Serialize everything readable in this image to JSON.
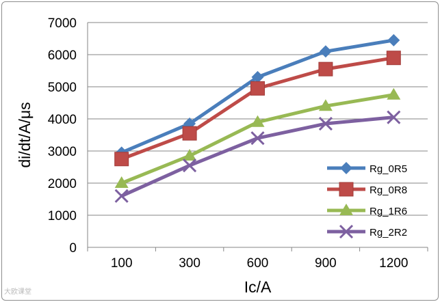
{
  "chart_data": {
    "type": "line",
    "title": "",
    "xlabel": "Ic/A",
    "ylabel": "di/dt/A/μs",
    "categories": [
      "100",
      "300",
      "600",
      "900",
      "1200"
    ],
    "ylim": [
      0,
      7000
    ],
    "yticks": [
      "0",
      "1000",
      "2000",
      "3000",
      "4000",
      "5000",
      "6000",
      "7000"
    ],
    "grid": true,
    "legend_position": "right",
    "series": [
      {
        "name": "Rg_0R5",
        "marker": "diamond",
        "color": "#4a7ebb",
        "values": [
          2950,
          3850,
          5300,
          6100,
          6450
        ]
      },
      {
        "name": "Rg_0R8",
        "marker": "square",
        "color": "#be4b48",
        "values": [
          2750,
          3550,
          4950,
          5550,
          5900
        ]
      },
      {
        "name": "Rg_1R6",
        "marker": "triangle",
        "color": "#98b954",
        "values": [
          2000,
          2850,
          3900,
          4400,
          4750
        ]
      },
      {
        "name": "Rg_2R2",
        "marker": "x",
        "color": "#7d60a0",
        "values": [
          1600,
          2550,
          3400,
          3850,
          4050
        ]
      }
    ]
  },
  "watermark": "大欧课堂"
}
